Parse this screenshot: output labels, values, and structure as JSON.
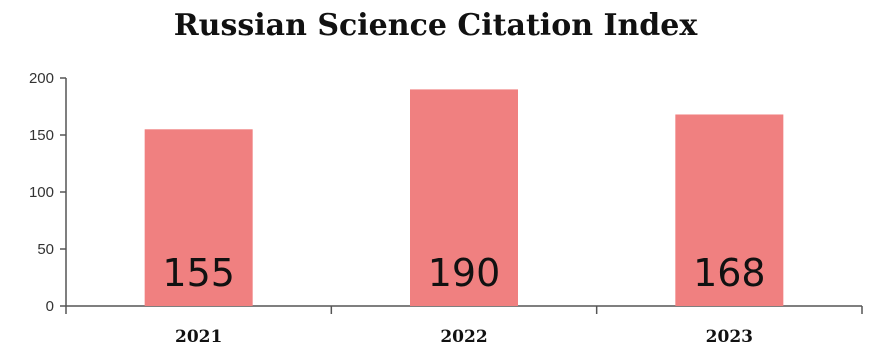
{
  "chart_data": {
    "type": "bar",
    "title": "Russian Science Citation Index",
    "categories": [
      "2021",
      "2022",
      "2023"
    ],
    "values": [
      155,
      190,
      168
    ],
    "data_labels": [
      "155",
      "190",
      "168"
    ],
    "ylim": [
      0,
      200
    ],
    "yticks": [
      "0",
      "50",
      "100",
      "150",
      "200"
    ],
    "xlabel": "",
    "ylabel": "",
    "grid": false,
    "legend": "none",
    "bar_color": "#f08080",
    "axis_color": "#555555"
  }
}
